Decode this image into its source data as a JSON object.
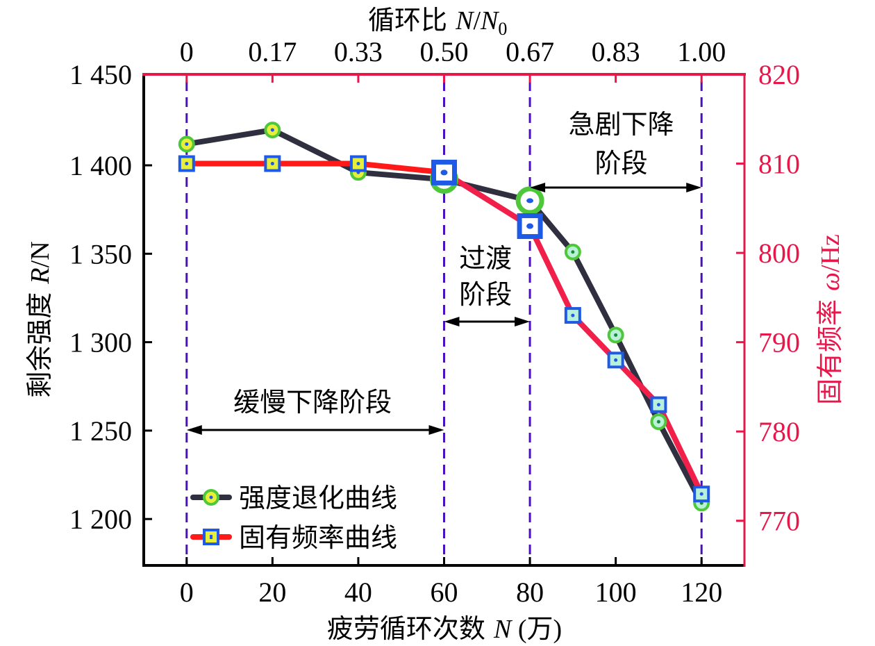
{
  "chart_data": {
    "type": "line",
    "title": "",
    "xlabel": {
      "prefix": "疲劳循环次数 ",
      "var": "N",
      "suffix": " (万)"
    },
    "ylabel_left": {
      "prefix": "剩余强度 ",
      "var": "R",
      "suffix": "/N"
    },
    "ylabel_right": {
      "prefix": "固有频率 ",
      "var": "ω",
      "suffix": "/Hz"
    },
    "top_axis_label": {
      "prefix": "循环比 ",
      "var": "N",
      "slash": "/",
      "var2": "N",
      "sub": "0"
    },
    "xlim": [
      -10,
      130
    ],
    "ylim_left": [
      1174,
      1450
    ],
    "ylim_right": [
      765,
      820
    ],
    "x_ticks": [
      0,
      20,
      40,
      60,
      80,
      100,
      120
    ],
    "x_tick_labels": [
      "0",
      "20",
      "40",
      "60",
      "80",
      "100",
      "120"
    ],
    "top_ticks": [
      0,
      20,
      40,
      60,
      80,
      100,
      120
    ],
    "top_tick_labels": [
      "0",
      "0.17",
      "0.33",
      "0.50",
      "0.67",
      "0.83",
      "1.00"
    ],
    "y_left_ticks": [
      1200,
      1250,
      1300,
      1350,
      1400,
      1450
    ],
    "y_left_tick_labels": [
      "1 200",
      "1 250",
      "1 300",
      "1 350",
      "1 400",
      "1 450"
    ],
    "y_right_ticks": [
      770,
      780,
      790,
      800,
      810,
      820
    ],
    "y_right_tick_labels": [
      "770",
      "780",
      "790",
      "800",
      "810",
      "820"
    ],
    "grid": false,
    "legend_position": "bottom-left",
    "series": [
      {
        "name": "强度退化曲线",
        "axis": "left",
        "marker": "circle",
        "line_color": "#2f2f3f",
        "marker_edge": "#4ec83a",
        "x": [
          0,
          20,
          40,
          60,
          80,
          90,
          100,
          110,
          120
        ],
        "values": [
          1412,
          1420,
          1396,
          1392,
          1380,
          1351,
          1304,
          1255,
          1209
        ]
      },
      {
        "name": "固有频率曲线",
        "axis": "right",
        "marker": "square",
        "line_color": "#ff1a1a",
        "marker_edge": "#1e5ae6",
        "x": [
          0,
          20,
          40,
          60,
          80,
          90,
          100,
          110,
          120
        ],
        "values": [
          810,
          810,
          810,
          809,
          803,
          793,
          788,
          783,
          773
        ]
      }
    ],
    "vertical_lines": [
      0,
      60,
      80,
      120
    ],
    "annotations": [
      {
        "lines": [
          "缓慢下降阶段"
        ],
        "from": 0,
        "to": 60
      },
      {
        "lines": [
          "过渡",
          "阶段"
        ],
        "from": 60,
        "to": 80
      },
      {
        "lines": [
          "急剧下降",
          "阶段"
        ],
        "from": 80,
        "to": 120
      }
    ],
    "colors": {
      "right_axis": "#e8174a",
      "vline": "#4b0fbf",
      "marker_fill_early": "#e6f03a",
      "marker_fill_late": "#b8f0d8",
      "marker_dot": "#1e5ae6"
    }
  }
}
